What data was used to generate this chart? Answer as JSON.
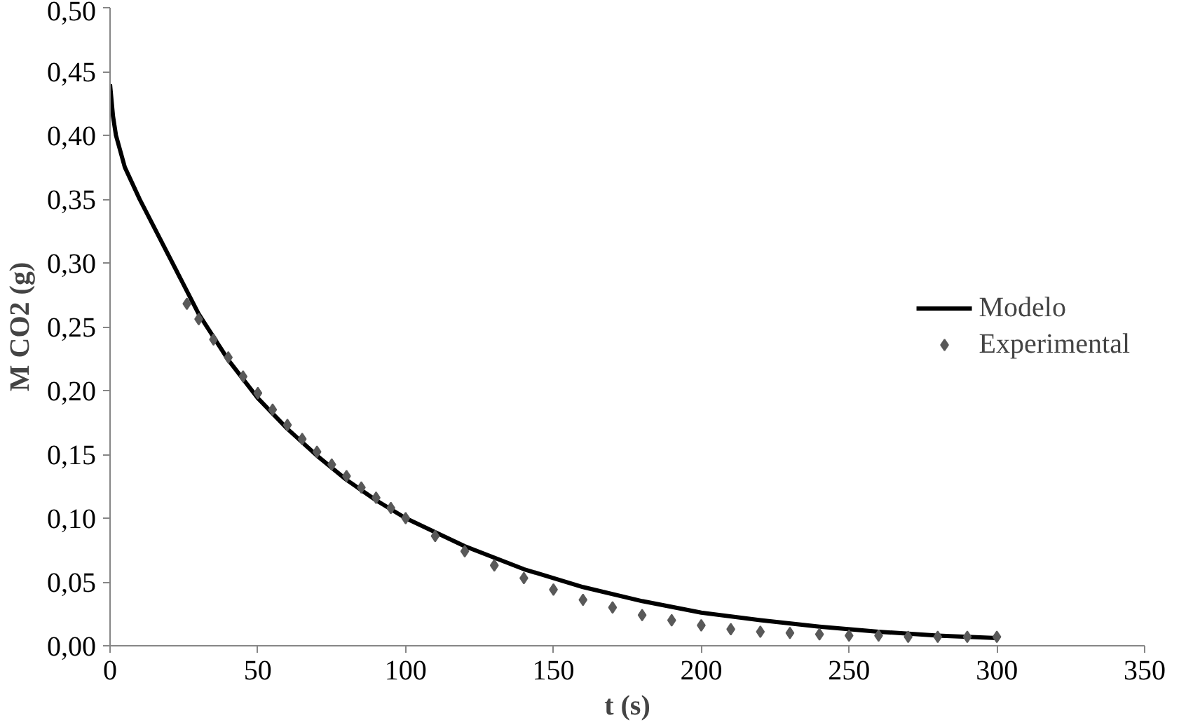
{
  "chart_data": {
    "type": "line",
    "xlabel": "t (s)",
    "ylabel": "M CO2 (g)",
    "xlim": [
      0,
      350
    ],
    "xticks": [
      0,
      50,
      100,
      150,
      200,
      250,
      300,
      350
    ],
    "ylim": [
      0,
      0.5
    ],
    "yticks": [
      {
        "value": 0,
        "label": "0,00"
      },
      {
        "value": 0.05,
        "label": "0,05"
      },
      {
        "value": 0.1,
        "label": "0,10"
      },
      {
        "value": 0.15,
        "label": "0,15"
      },
      {
        "value": 0.2,
        "label": "0,20"
      },
      {
        "value": 0.25,
        "label": "0,25"
      },
      {
        "value": 0.3,
        "label": "0,30"
      },
      {
        "value": 0.35,
        "label": "0,35"
      },
      {
        "value": 0.4,
        "label": "0,40"
      },
      {
        "value": 0.45,
        "label": "0,45"
      },
      {
        "value": 0.5,
        "label": "0,50"
      }
    ],
    "grid": false,
    "legend": "right",
    "series": [
      {
        "name": "Modelo",
        "color": "#000000",
        "line_style": "solid",
        "marker": "none",
        "x": [
          0,
          1,
          2,
          5,
          10,
          20,
          30,
          40,
          50,
          60,
          70,
          80,
          90,
          100,
          120,
          140,
          160,
          180,
          200,
          220,
          240,
          260,
          280,
          300
        ],
        "values": [
          0.44,
          0.415,
          0.4,
          0.375,
          0.35,
          0.305,
          0.26,
          0.224,
          0.194,
          0.17,
          0.149,
          0.13,
          0.114,
          0.1,
          0.078,
          0.06,
          0.046,
          0.035,
          0.026,
          0.02,
          0.015,
          0.011,
          0.008,
          0.006
        ]
      },
      {
        "name": "Experimental",
        "type": "scatter",
        "color": "#595959",
        "marker": "diamond",
        "x": [
          26,
          30,
          35,
          40,
          45,
          50,
          55,
          60,
          65,
          70,
          75,
          80,
          85,
          90,
          95,
          100,
          110,
          120,
          130,
          140,
          150,
          160,
          170,
          180,
          190,
          200,
          210,
          220,
          230,
          240,
          250,
          260,
          270,
          280,
          290,
          300
        ],
        "values": [
          0.268,
          0.256,
          0.24,
          0.226,
          0.211,
          0.198,
          0.185,
          0.173,
          0.162,
          0.152,
          0.142,
          0.133,
          0.124,
          0.116,
          0.108,
          0.1,
          0.086,
          0.074,
          0.063,
          0.053,
          0.044,
          0.036,
          0.03,
          0.024,
          0.02,
          0.016,
          0.013,
          0.011,
          0.01,
          0.009,
          0.008,
          0.008,
          0.007,
          0.007,
          0.007,
          0.007
        ]
      }
    ]
  }
}
